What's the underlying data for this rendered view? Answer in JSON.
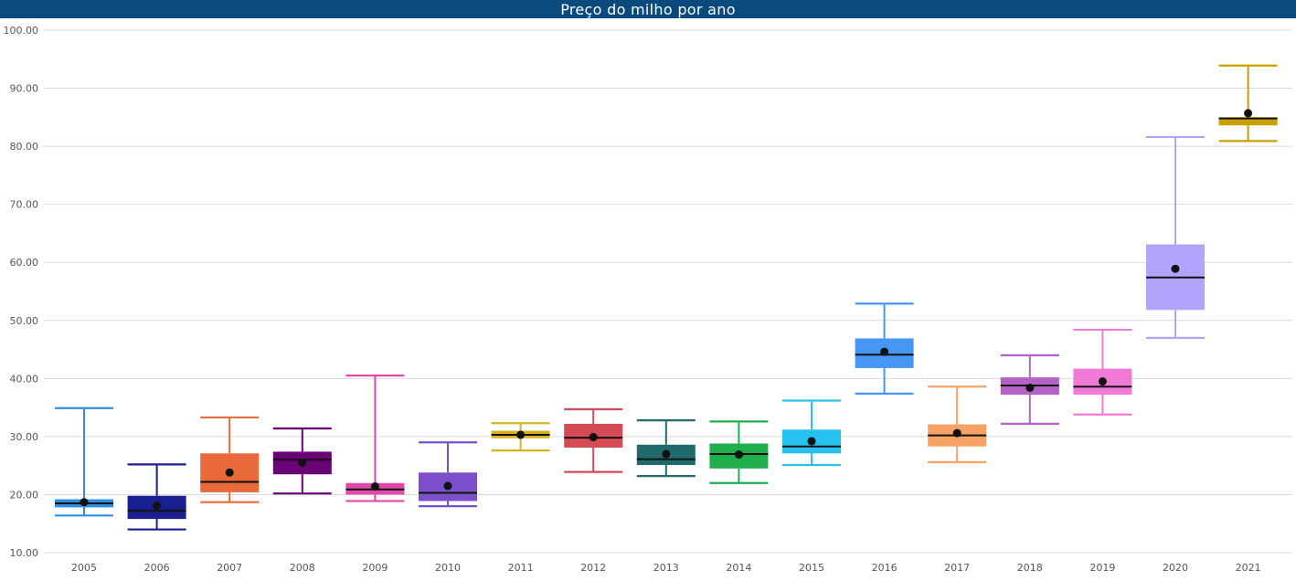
{
  "chart_data": {
    "type": "box",
    "title": "Preço do milho por ano",
    "xlabel": "",
    "ylabel": "",
    "ylim": [
      10,
      100
    ],
    "yticks": [
      "10.00",
      "20.00",
      "30.00",
      "40.00",
      "50.00",
      "60.00",
      "70.00",
      "80.00",
      "90.00",
      "100.00"
    ],
    "grid": true,
    "series": [
      {
        "year": "2005",
        "color": "#2f8fde",
        "min": 16.4,
        "q1": 17.8,
        "median": 18.5,
        "q3": 19.2,
        "max": 34.9,
        "mean": 18.7
      },
      {
        "year": "2006",
        "color": "#1a1f8f",
        "min": 14.0,
        "q1": 15.8,
        "median": 17.2,
        "q3": 19.8,
        "max": 25.2,
        "mean": 18.1
      },
      {
        "year": "2007",
        "color": "#e8693a",
        "min": 18.7,
        "q1": 20.4,
        "median": 22.2,
        "q3": 27.1,
        "max": 33.3,
        "mean": 23.8
      },
      {
        "year": "2008",
        "color": "#6a0078",
        "min": 20.2,
        "q1": 23.5,
        "median": 26.0,
        "q3": 27.4,
        "max": 31.4,
        "mean": 25.5
      },
      {
        "year": "2009",
        "color": "#e04aa8",
        "min": 18.9,
        "q1": 20.0,
        "median": 20.9,
        "q3": 22.0,
        "max": 40.5,
        "mean": 21.4
      },
      {
        "year": "2010",
        "color": "#7a4fc9",
        "min": 18.0,
        "q1": 18.9,
        "median": 20.3,
        "q3": 23.8,
        "max": 29.0,
        "mean": 21.5
      },
      {
        "year": "2011",
        "color": "#d9b21f",
        "min": 27.6,
        "q1": 29.7,
        "median": 30.3,
        "q3": 31.0,
        "max": 32.3,
        "mean": 30.3
      },
      {
        "year": "2012",
        "color": "#d44a55",
        "min": 23.9,
        "q1": 28.1,
        "median": 29.8,
        "q3": 32.2,
        "max": 34.7,
        "mean": 29.9
      },
      {
        "year": "2013",
        "color": "#1f6b6b",
        "min": 23.2,
        "q1": 25.1,
        "median": 26.1,
        "q3": 28.6,
        "max": 32.8,
        "mean": 27.0
      },
      {
        "year": "2014",
        "color": "#1fae4c",
        "min": 22.0,
        "q1": 24.5,
        "median": 27.0,
        "q3": 28.8,
        "max": 32.6,
        "mean": 26.9
      },
      {
        "year": "2015",
        "color": "#26c2ef",
        "min": 25.1,
        "q1": 27.1,
        "median": 28.3,
        "q3": 31.2,
        "max": 36.2,
        "mean": 29.2
      },
      {
        "year": "2016",
        "color": "#4596f5",
        "min": 37.4,
        "q1": 41.8,
        "median": 44.1,
        "q3": 46.9,
        "max": 52.9,
        "mean": 44.6
      },
      {
        "year": "2017",
        "color": "#f5a264",
        "min": 25.6,
        "q1": 28.3,
        "median": 30.2,
        "q3": 32.1,
        "max": 38.6,
        "mean": 30.6
      },
      {
        "year": "2018",
        "color": "#b562c7",
        "min": 32.2,
        "q1": 37.2,
        "median": 38.8,
        "q3": 40.2,
        "max": 44.0,
        "mean": 38.4
      },
      {
        "year": "2019",
        "color": "#f07ad6",
        "min": 33.8,
        "q1": 37.2,
        "median": 38.6,
        "q3": 41.7,
        "max": 48.4,
        "mean": 39.5
      },
      {
        "year": "2020",
        "color": "#b3a3fb",
        "min": 47.0,
        "q1": 51.8,
        "median": 57.4,
        "q3": 63.1,
        "max": 81.6,
        "mean": 58.9
      },
      {
        "year": "2021",
        "color": "#c9a000",
        "min": 80.9,
        "q1": 83.6,
        "median": 84.8,
        "q3": 85.0,
        "max": 93.9,
        "mean": 85.7
      }
    ]
  }
}
